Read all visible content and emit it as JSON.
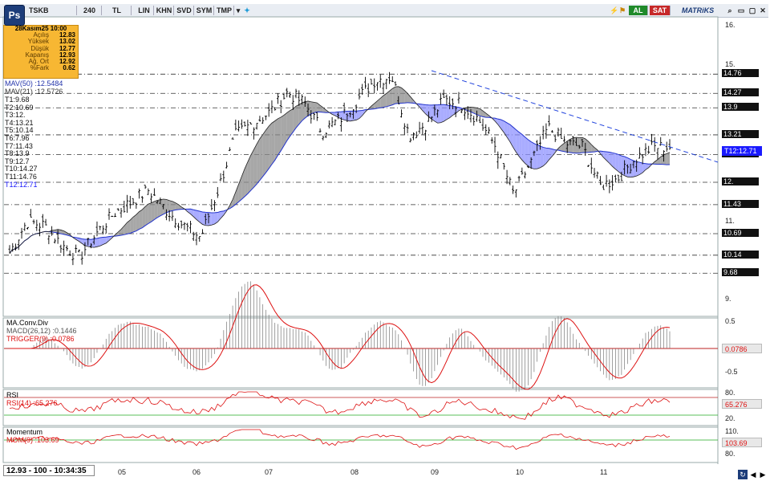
{
  "toolbar": {
    "symbol": "TSKB",
    "period": "240",
    "currency": "TL",
    "scales": [
      "LIN",
      "KHN",
      "SVD",
      "SYM",
      "TMP"
    ],
    "app_badge": "Ps",
    "buy_label": "AL",
    "sell_label": "SAT",
    "brand": "MATRiKS"
  },
  "infobox": {
    "date": "28Kasım25 10:00",
    "rows": [
      {
        "k": "Açılış",
        "v": "12.83"
      },
      {
        "k": "Yüksek",
        "v": "13.02"
      },
      {
        "k": "Düşük",
        "v": "12.77"
      },
      {
        "k": "Kapanış",
        "v": "12.93"
      },
      {
        "k": "Ağ. Ort",
        "v": "12.92"
      },
      {
        "k": "%Fark",
        "v": "0.62"
      }
    ]
  },
  "indicators": {
    "mav50": "MAV(50)  :12.5484",
    "mav21": "MAV(21)  :12.5726",
    "targets": [
      "T1:9.68",
      "T2:10.69",
      "T3:12.",
      "T4:13.21",
      "T5:10.14",
      "T6:7.96",
      "T7:11.43",
      "T8:13.9",
      "T9:12.7",
      "T10:14.27",
      "T11:14.76",
      "T12:12.71"
    ]
  },
  "macd": {
    "title": "MA.Conv.Div",
    "macd": "MACD(26,12)  :0.1446",
    "trigger": "TRIGGER(9)  :0.0786",
    "tag": "0.0786"
  },
  "rsi": {
    "title": "RSI",
    "value": "RSI(14)  :65.276",
    "tag": "65.276"
  },
  "momentum": {
    "title": "Momentum",
    "value": "MOM(9)  :103.69",
    "tag": "103.69"
  },
  "price_axis": [
    "16.",
    "15.",
    "14.76",
    "14.27",
    "13.9",
    "13.21",
    "12.71",
    "12.",
    "11.43",
    "11.",
    "10.69",
    "10.14",
    "9.68",
    "9."
  ],
  "macd_axis": [
    "0.5",
    "-0.5"
  ],
  "rsi_axis": [
    "80.",
    "20."
  ],
  "mom_axis": [
    "110.",
    "80."
  ],
  "dates": [
    "05",
    "06",
    "07",
    "08",
    "09",
    "10",
    "11"
  ],
  "status_text": "12.93 - 100 - 10:34:35",
  "colors": {
    "accent_blue": "#1a1aff",
    "buy": "#1f8a2a",
    "sell": "#c62828",
    "infobox": "#f7b733"
  },
  "chart_data": {
    "type": "line",
    "title": "TSKB",
    "ylim": [
      8.6,
      16.2
    ],
    "ylabel": "",
    "xlabel": "",
    "x": [
      "05",
      "06",
      "07",
      "08",
      "09",
      "10",
      "11"
    ],
    "series": [
      {
        "name": "MAV(50)",
        "values": [
          10.6,
          10.4,
          10.8,
          13.3,
          14.0,
          13.7,
          12.5
        ]
      },
      {
        "name": "MAV(21)",
        "values": [
          10.5,
          10.5,
          11.4,
          13.6,
          14.2,
          12.7,
          12.5
        ]
      }
    ],
    "price_path": [
      10.2,
      11.0,
      10.9,
      10.4,
      10.1,
      10.7,
      11.2,
      11.5,
      11.8,
      11.3,
      10.9,
      10.6,
      11.8,
      13.2,
      13.5,
      13.8,
      14.3,
      14.0,
      13.3,
      13.6,
      14.1,
      14.6,
      14.7,
      13.2,
      13.5,
      14.1,
      14.0,
      13.6,
      12.9,
      11.7,
      12.5,
      13.4,
      13.0,
      12.9,
      11.9,
      12.1,
      12.6,
      12.9,
      12.9
    ]
  }
}
